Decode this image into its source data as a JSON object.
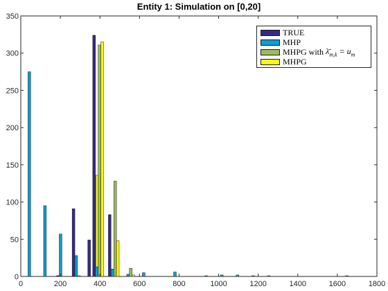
{
  "chart_data": {
    "type": "bar",
    "title": "Entity 1: Simulation on [0,20]",
    "xlabel": "",
    "ylabel": "",
    "xlim": [
      0,
      1800
    ],
    "ylim": [
      0,
      350
    ],
    "x_ticks": [
      0,
      200,
      400,
      600,
      800,
      1000,
      1200,
      1400,
      1600,
      1800
    ],
    "y_ticks": [
      0,
      50,
      100,
      150,
      200,
      250,
      300,
      350
    ],
    "grid": false,
    "legend_position": "top-right",
    "groups": [
      {
        "x": 50,
        "values": [
          0,
          275,
          0,
          0
        ]
      },
      {
        "x": 129,
        "values": [
          0,
          95,
          0,
          0
        ]
      },
      {
        "x": 208,
        "values": [
          1,
          57,
          0,
          0
        ]
      },
      {
        "x": 287,
        "values": [
          91,
          28,
          1,
          0
        ]
      },
      {
        "x": 366,
        "values": [
          49,
          0,
          0,
          136
        ]
      },
      {
        "x": 391,
        "values": [
          324,
          13,
          311,
          315
        ]
      },
      {
        "x": 470,
        "values": [
          83,
          10,
          128,
          48
        ]
      },
      {
        "x": 549,
        "values": [
          0,
          3,
          11,
          2
        ]
      },
      {
        "x": 628,
        "values": [
          0,
          5,
          0,
          0
        ]
      },
      {
        "x": 707,
        "values": [
          0,
          0,
          0,
          0
        ]
      },
      {
        "x": 786,
        "values": [
          0,
          6,
          0,
          0
        ]
      },
      {
        "x": 865,
        "values": [
          0,
          0,
          0,
          0
        ]
      },
      {
        "x": 944,
        "values": [
          0,
          1,
          0,
          0
        ]
      },
      {
        "x": 1023,
        "values": [
          0,
          2,
          0,
          0
        ]
      },
      {
        "x": 1102,
        "values": [
          0,
          2,
          0,
          0
        ]
      },
      {
        "x": 1181,
        "values": [
          0,
          1,
          0,
          0
        ]
      },
      {
        "x": 1260,
        "values": [
          0,
          1,
          0,
          0
        ]
      },
      {
        "x": 1339,
        "values": [
          0,
          0,
          0,
          0
        ]
      },
      {
        "x": 1418,
        "values": [
          0,
          0,
          0,
          0
        ]
      },
      {
        "x": 1497,
        "values": [
          0,
          0,
          0,
          0
        ]
      },
      {
        "x": 1576,
        "values": [
          0,
          0,
          0,
          0
        ]
      },
      {
        "x": 1655,
        "values": [
          0,
          1,
          0,
          0
        ]
      }
    ],
    "series": [
      {
        "name": "TRUE",
        "color": "#352a87"
      },
      {
        "name": "MHP",
        "color": "#0f9ccf"
      },
      {
        "name": "MHPG with λ̄m,k = um",
        "color": "#9cba61"
      },
      {
        "name": "MHPG",
        "color": "#f9fb0e"
      }
    ]
  },
  "legend": {
    "items": [
      {
        "label": "TRUE"
      },
      {
        "label": "MHP"
      },
      {
        "label": "MHPG with",
        "math_base": "λ̄",
        "math_sub": "m,k",
        "math_eq": " = u",
        "math_sub2": "m"
      },
      {
        "label": "MHPG"
      }
    ]
  }
}
